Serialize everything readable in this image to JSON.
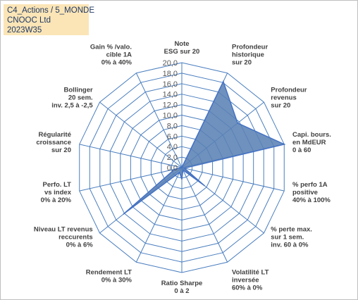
{
  "title_box": {
    "line1": "C4_Actions / 5_MONDE",
    "line2": "CNOOC Ltd",
    "line3": "2023W35"
  },
  "chart_data": {
    "type": "radar",
    "axes": [
      [
        "Note",
        "ESG sur 20"
      ],
      [
        "Profondeur",
        "historique",
        "sur 20"
      ],
      [
        "Profondeur",
        "revenus",
        "sur 20"
      ],
      [
        "Capi. bours.",
        "en MdEUR",
        "0 à 60"
      ],
      [
        "% perfo 1A",
        "positive",
        "40% à 100%"
      ],
      [
        "% perte max.",
        "sur 1 sem.",
        "inv. 60 à 0%"
      ],
      [
        "Volatilité LT",
        "inversée",
        "60% à 0%"
      ],
      [
        "Ratio Sharpe",
        "0 à 2"
      ],
      [
        "Rendement LT",
        "0% à 30%"
      ],
      [
        "Niveau LT  revenus",
        "reccurents",
        "0% à 6%"
      ],
      [
        "Perfo. LT",
        "vs index",
        "0% à 20%"
      ],
      [
        "Régularité",
        "croissance",
        "sur 20"
      ],
      [
        "Bollinger",
        "20 sem.",
        "inv. 2,5 à -2,5"
      ],
      [
        "Gain % /valo.",
        "cible 1A",
        "0% à 40%"
      ]
    ],
    "series": [
      {
        "values": [
          0,
          18.2,
          13.6,
          20,
          0.5,
          5.5,
          0.5,
          2.2,
          1.0,
          14.2,
          1.4,
          0,
          0,
          0
        ]
      }
    ],
    "rlim": [
      0,
      20
    ],
    "ticks": [
      "0,0",
      "2,0",
      "4,0",
      "6,0",
      "8,0",
      "10,0",
      "12,0",
      "14,0",
      "16,0",
      "18,0",
      "20,0"
    ],
    "grid": true,
    "colors": {
      "fill": "#5b82b5",
      "stroke": "#4472c4",
      "grid": "#4a7ebf"
    }
  }
}
